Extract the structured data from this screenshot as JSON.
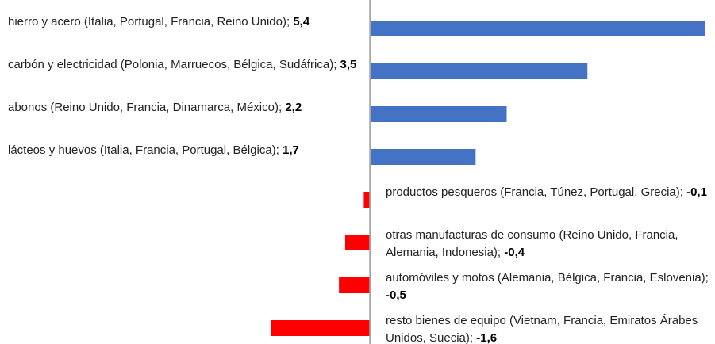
{
  "chart_data": {
    "type": "bar",
    "orientation": "horizontal",
    "categories": [
      "hierro y acero (Italia, Portugal, Francia, Reino Unido);",
      "carbón y electricidad (Polonia, Marruecos, Bélgica, Sudáfrica);",
      "abonos (Reino Unido, Francia, Dinamarca, México);",
      "lácteos y huevos (Italia, Francia, Portugal, Bélgica);",
      "productos pesqueros (Francia, Túnez, Portugal, Grecia);",
      "otras manufacturas de consumo (Reino Unido, Francia, Alemania, Indonesia);",
      "automóviles y motos (Alemania, Bélgica, Francia, Eslovenia);",
      "resto bienes de equipo (Vietnam, Francia, Emiratos Árabes Unidos, Suecia);"
    ],
    "values": [
      5.4,
      3.5,
      2.2,
      1.7,
      -0.1,
      -0.4,
      -0.5,
      -1.6
    ],
    "value_labels": [
      "5,4",
      "3,5",
      "2,2",
      "1,7",
      "-0,1",
      "-0,4",
      "-0,5",
      "-1,6"
    ],
    "positive_color": "#4472c4",
    "negative_color": "#ff0000"
  }
}
